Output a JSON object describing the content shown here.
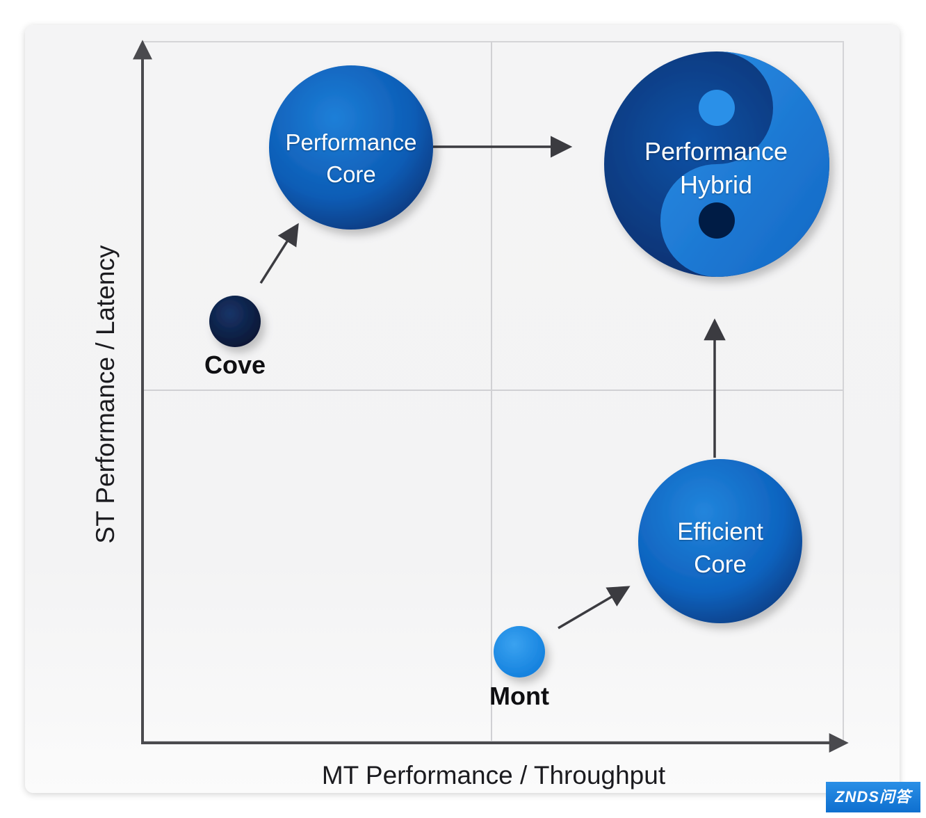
{
  "diagram": {
    "axes": {
      "x_label": "MT Performance / Throughput",
      "y_label": "ST Performance / Latency"
    },
    "nodes": {
      "cove": {
        "label": "Cove",
        "color": "#0b1f45"
      },
      "mont": {
        "label": "Mont",
        "color": "#1e8ee9"
      },
      "performance_core": {
        "line1": "Performance",
        "line2": "Core",
        "color": "#0d5fb8"
      },
      "efficient_core": {
        "line1": "Efficient",
        "line2": "Core",
        "color": "#0e66c2"
      },
      "performance_hybrid": {
        "line1": "Performance",
        "line2": "Hybrid",
        "color_dark": "#0a2f72",
        "color_light": "#1c7fdc"
      }
    },
    "arrows": [
      {
        "from": "cove",
        "to": "performance_core"
      },
      {
        "from": "performance_core",
        "to": "performance_hybrid"
      },
      {
        "from": "mont",
        "to": "efficient_core"
      },
      {
        "from": "efficient_core",
        "to": "performance_hybrid"
      }
    ]
  },
  "watermark": {
    "text": "ZNDS问答"
  }
}
